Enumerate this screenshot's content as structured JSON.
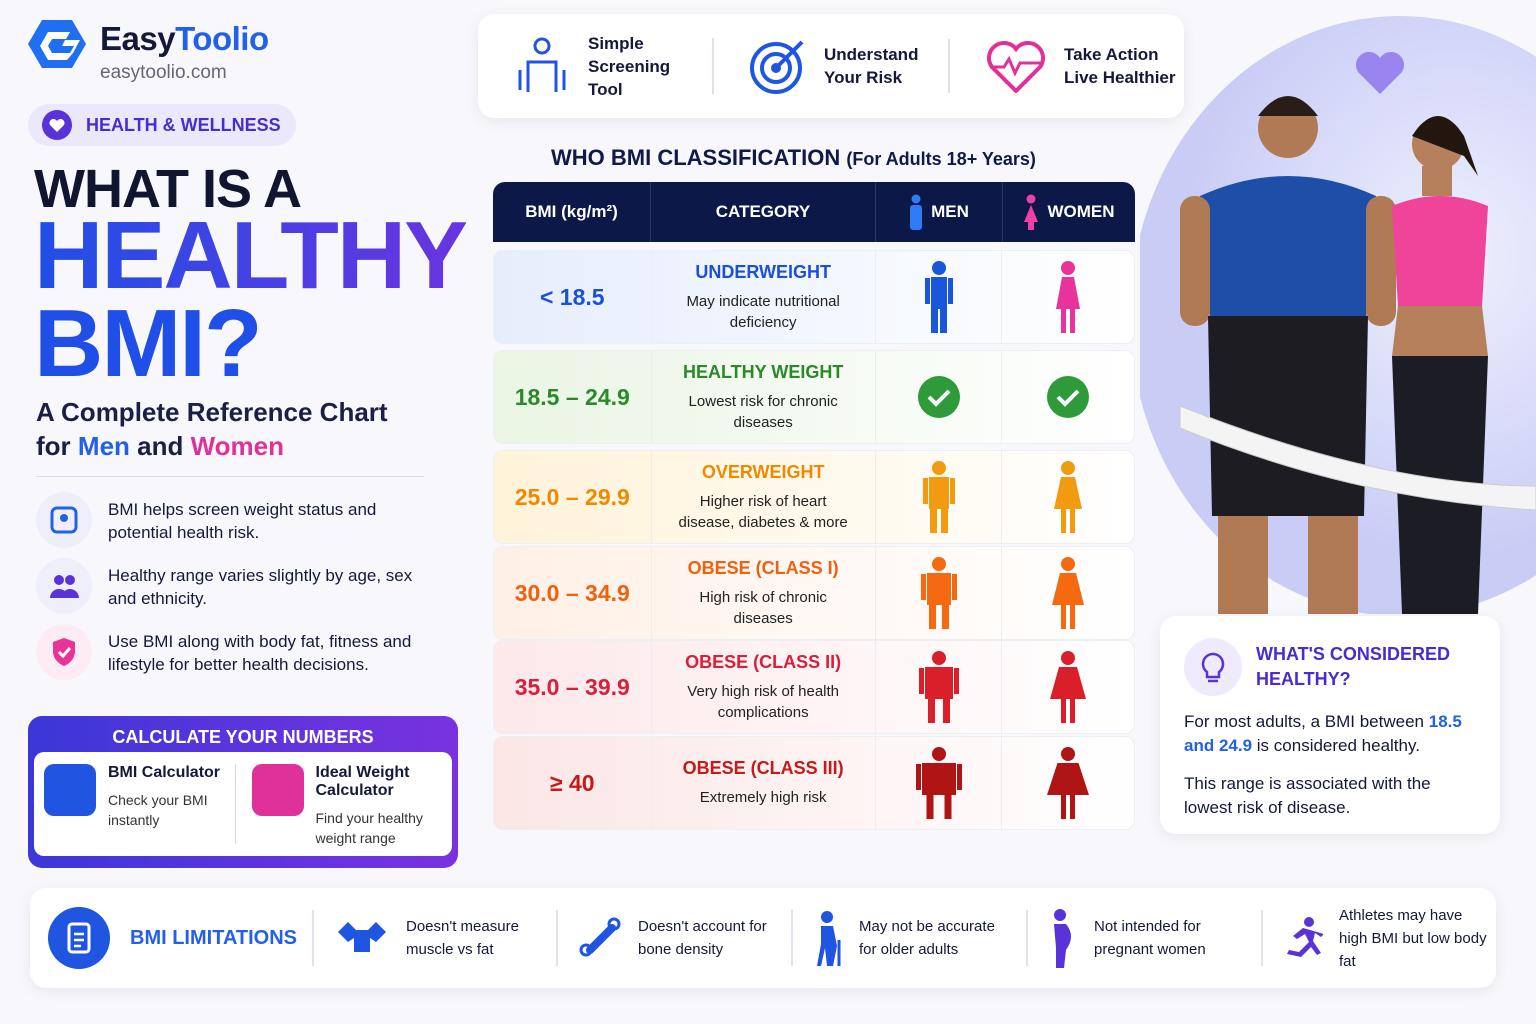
{
  "brand": {
    "name_first": "Easy",
    "name_second": "Toolio",
    "url": "easytoolio.com"
  },
  "tag": "HEALTH & WELLNESS",
  "headline": {
    "line1": "WHAT IS A",
    "line2": "HEALTHY",
    "line3": "BMI?"
  },
  "subtitle": {
    "line1": "A Complete Reference Chart",
    "prefix": "for",
    "men": "Men",
    "joiner": "and",
    "women": "Women"
  },
  "key_points": [
    "BMI helps screen weight status and potential health risk.",
    "Healthy range varies slightly by age, sex and ethnicity.",
    "Use BMI along with body fat, fitness and lifestyle for better health decisions."
  ],
  "calculators": {
    "title": "CALCULATE YOUR NUMBERS",
    "tools": [
      {
        "name": "BMI Calculator",
        "description": "Check your BMI instantly"
      },
      {
        "name": "Ideal Weight Calculator",
        "description": "Find your healthy weight range"
      }
    ]
  },
  "highlights": [
    "Simple Screening Tool",
    "Understand Your Risk",
    "Take Action Live Healthier"
  ],
  "table": {
    "title": "WHO BMI CLASSIFICATION",
    "note": "(For Adults 18+ Years)",
    "headers": [
      "BMI (kg/m²)",
      "CATEGORY",
      "MEN",
      "WOMEN"
    ],
    "rows": [
      {
        "bmi": "< 18.5",
        "category": "UNDERWEIGHT",
        "description": "May indicate nutritional deficiency"
      },
      {
        "bmi": "18.5 – 24.9",
        "category": "HEALTHY WEIGHT",
        "description": "Lowest risk for chronic diseases"
      },
      {
        "bmi": "25.0 – 29.9",
        "category": "OVERWEIGHT",
        "description": "Higher risk of heart disease, diabetes & more"
      },
      {
        "bmi": "30.0 – 34.9",
        "category": "OBESE (CLASS I)",
        "description": "High risk of chronic diseases"
      },
      {
        "bmi": "35.0 – 39.9",
        "category": "OBESE (CLASS II)",
        "description": "Very high risk of health complications"
      },
      {
        "bmi": "≥ 40",
        "category": "OBESE (CLASS III)",
        "description": "Extremely high risk"
      }
    ]
  },
  "healthy_box": {
    "title": "WHAT'S CONSIDERED HEALTHY?",
    "text_before": "For most adults, a BMI between",
    "range": "18.5 and 24.9",
    "text_after": "is considered healthy.",
    "note": "This range is associated with the lowest risk of disease."
  },
  "limitations": {
    "title": "BMI LIMITATIONS",
    "items": [
      "Doesn't measure muscle vs fat",
      "Doesn't account for bone density",
      "May not be accurate for older adults",
      "Not intended for pregnant women",
      "Athletes may have high BMI but low body fat"
    ]
  }
}
